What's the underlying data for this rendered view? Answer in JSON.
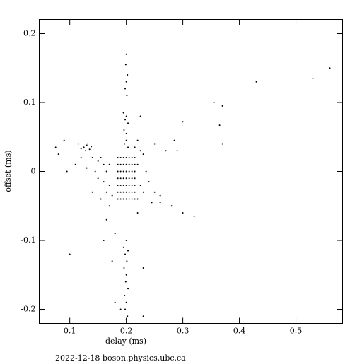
{
  "chart_data": {
    "type": "scatter",
    "x_label": "delay (ms)",
    "y_label": "offset (ms)",
    "footer": "2022-12-18 boson.physics.ubc.ca",
    "color": "#000000",
    "xlim": [
      0.046,
      0.5825
    ],
    "ylim": [
      -0.2205,
      0.2205
    ],
    "xticks": [
      0.1,
      0.2,
      0.3,
      0.4,
      0.5
    ],
    "yticks": [
      -0.2,
      -0.1,
      0,
      0.1,
      0.2
    ],
    "x": [
      0.185,
      0.185,
      0.185,
      0.185,
      0.185,
      0.185,
      0.185,
      0.19,
      0.19,
      0.19,
      0.19,
      0.19,
      0.19,
      0.19,
      0.195,
      0.195,
      0.195,
      0.195,
      0.195,
      0.195,
      0.195,
      0.2,
      0.2,
      0.2,
      0.2,
      0.2,
      0.2,
      0.2,
      0.205,
      0.205,
      0.205,
      0.205,
      0.205,
      0.205,
      0.205,
      0.21,
      0.21,
      0.21,
      0.21,
      0.21,
      0.21,
      0.21,
      0.215,
      0.215,
      0.215,
      0.215,
      0.215,
      0.215,
      0.215,
      0.2,
      0.199,
      0.202,
      0.2,
      0.198,
      0.201,
      0.195,
      0.2,
      0.198,
      0.203,
      0.196,
      0.2,
      0.2,
      0.197,
      0.203,
      0.2,
      0.195,
      0.203,
      0.198,
      0.201,
      0.196,
      0.2,
      0.199,
      0.203,
      0.197,
      0.2,
      0.198,
      0.202,
      0.2,
      0.19,
      0.125,
      0.13,
      0.135,
      0.128,
      0.132,
      0.12,
      0.138,
      0.115,
      0.14,
      0.15,
      0.155,
      0.16,
      0.145,
      0.15,
      0.16,
      0.17,
      0.165,
      0.17,
      0.175,
      0.165,
      0.155,
      0.14,
      0.13,
      0.12,
      0.11,
      0.095,
      0.08,
      0.075,
      0.1,
      0.09,
      0.16,
      0.18,
      0.175,
      0.165,
      0.17,
      0.22,
      0.225,
      0.23,
      0.22,
      0.235,
      0.24,
      0.25,
      0.26,
      0.225,
      0.215,
      0.22,
      0.23,
      0.245,
      0.27,
      0.25,
      0.225,
      0.22,
      0.23,
      0.23,
      0.18,
      0.56,
      0.53,
      0.43,
      0.355,
      0.37,
      0.365,
      0.3,
      0.32,
      0.3,
      0.285,
      0.26,
      0.29,
      0.37,
      0.28
    ],
    "y": [
      0.02,
      0.01,
      0,
      -0.01,
      -0.02,
      -0.03,
      -0.04,
      0.02,
      0.01,
      0,
      -0.01,
      -0.02,
      -0.03,
      -0.04,
      0.02,
      0.01,
      0,
      -0.01,
      -0.02,
      -0.03,
      -0.04,
      0.02,
      0.01,
      0,
      -0.01,
      -0.02,
      -0.03,
      -0.04,
      0.02,
      0.01,
      0,
      -0.01,
      -0.02,
      -0.03,
      -0.04,
      0.02,
      0.01,
      0,
      -0.01,
      -0.02,
      -0.03,
      -0.04,
      0.02,
      0.01,
      0,
      -0.01,
      -0.02,
      -0.03,
      -0.04,
      0.17,
      0.155,
      0.14,
      0.13,
      0.12,
      0.11,
      0.085,
      0.08,
      0.075,
      0.07,
      0.06,
      0.055,
      0.045,
      0.04,
      0.035,
      -0.1,
      -0.11,
      -0.115,
      -0.12,
      -0.13,
      -0.14,
      -0.15,
      -0.16,
      -0.17,
      -0.18,
      -0.19,
      -0.2,
      -0.21,
      -0.215,
      -0.2,
      0.035,
      0.038,
      0.032,
      0.03,
      0.04,
      0.033,
      0.036,
      0.04,
      0.02,
      0.015,
      0.02,
      0.01,
      0,
      -0.01,
      -0.015,
      -0.02,
      0,
      0.01,
      -0.035,
      -0.03,
      -0.04,
      -0.03,
      0.005,
      0.02,
      0.01,
      0,
      0.025,
      0.035,
      -0.12,
      0.045,
      -0.1,
      -0.09,
      -0.13,
      -0.07,
      -0.05,
      0.01,
      -0.02,
      -0.03,
      -0.04,
      0,
      -0.015,
      -0.03,
      -0.035,
      0.03,
      0.035,
      0.045,
      0.025,
      -0.045,
      0.03,
      0.04,
      0.08,
      -0.06,
      -0.14,
      -0.21,
      -0.19,
      0.15,
      0.135,
      0.13,
      0.1,
      0.095,
      0.067,
      0.072,
      -0.065,
      -0.06,
      0.045,
      -0.045,
      0.03,
      0.04,
      -0.05
    ]
  }
}
